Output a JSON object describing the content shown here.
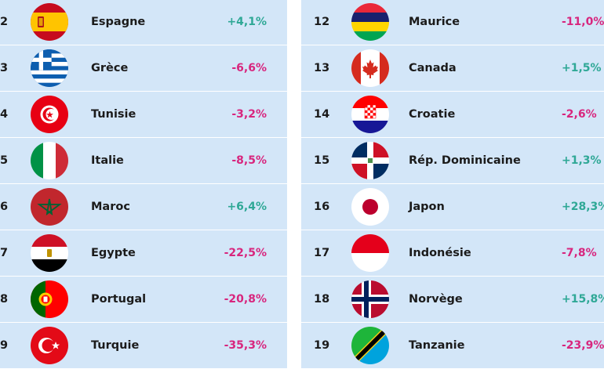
{
  "left": [
    {
      "rank": "2",
      "country": "Espagne",
      "change": "+4,1%",
      "trend": "pos",
      "flag": "spain-flag-icon"
    },
    {
      "rank": "3",
      "country": "Grèce",
      "change": "-6,6%",
      "trend": "neg",
      "flag": "greece-flag-icon"
    },
    {
      "rank": "4",
      "country": "Tunisie",
      "change": "-3,2%",
      "trend": "neg",
      "flag": "tunisia-flag-icon"
    },
    {
      "rank": "5",
      "country": "Italie",
      "change": "-8,5%",
      "trend": "neg",
      "flag": "italy-flag-icon"
    },
    {
      "rank": "6",
      "country": "Maroc",
      "change": "+6,4%",
      "trend": "pos",
      "flag": "morocco-flag-icon"
    },
    {
      "rank": "7",
      "country": "Egypte",
      "change": "-22,5%",
      "trend": "neg",
      "flag": "egypt-flag-icon"
    },
    {
      "rank": "8",
      "country": "Portugal",
      "change": "-20,8%",
      "trend": "neg",
      "flag": "portugal-flag-icon"
    },
    {
      "rank": "9",
      "country": "Turquie",
      "change": "-35,3%",
      "trend": "neg",
      "flag": "turkey-flag-icon"
    }
  ],
  "right": [
    {
      "rank": "12",
      "country": "Maurice",
      "change": "-11,0%",
      "trend": "neg",
      "flag": "mauritius-flag-icon"
    },
    {
      "rank": "13",
      "country": "Canada",
      "change": "+1,5%",
      "trend": "pos",
      "flag": "canada-flag-icon"
    },
    {
      "rank": "14",
      "country": "Croatie",
      "change": "-2,6%",
      "trend": "neg",
      "flag": "croatia-flag-icon"
    },
    {
      "rank": "15",
      "country": "Rép. Dominicaine",
      "change": "+1,3%",
      "trend": "pos",
      "flag": "dominican-republic-flag-icon"
    },
    {
      "rank": "16",
      "country": "Japon",
      "change": "+28,3%",
      "trend": "pos",
      "flag": "japan-flag-icon"
    },
    {
      "rank": "17",
      "country": "Indonésie",
      "change": "-7,8%",
      "trend": "neg",
      "flag": "indonesia-flag-icon"
    },
    {
      "rank": "18",
      "country": "Norvège",
      "change": "+15,8%",
      "trend": "pos",
      "flag": "norway-flag-icon"
    },
    {
      "rank": "19",
      "country": "Tanzanie",
      "change": "-23,9%",
      "trend": "neg",
      "flag": "tanzania-flag-icon"
    }
  ],
  "colors": {
    "positive": "#2fa896",
    "negative": "#d8267e",
    "panel": "#d3e6f8"
  }
}
